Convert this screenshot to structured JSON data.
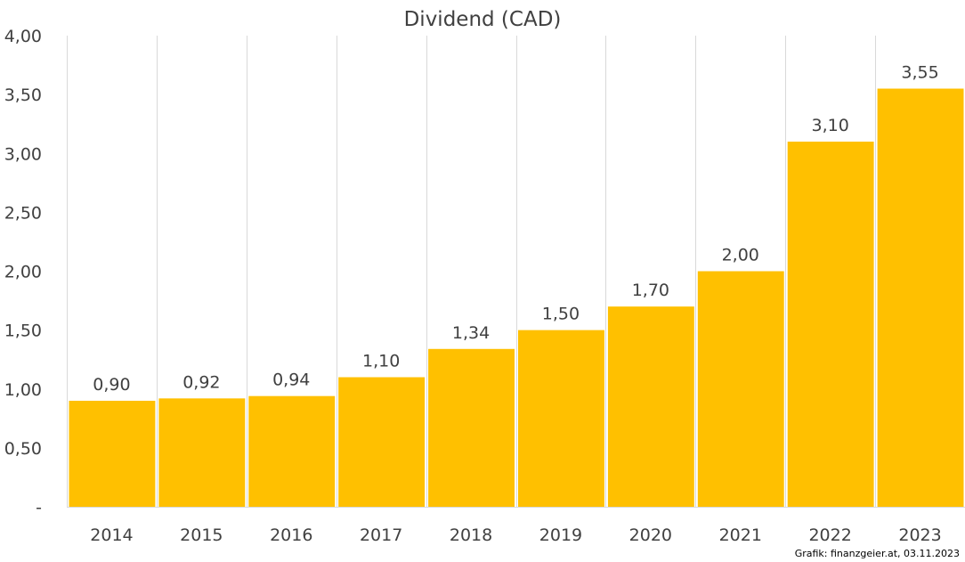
{
  "chart_data": {
    "type": "bar",
    "title": "Dividend (CAD)",
    "categories": [
      "2014",
      "2015",
      "2016",
      "2017",
      "2018",
      "2019",
      "2020",
      "2021",
      "2022",
      "2023"
    ],
    "values": [
      0.9,
      0.92,
      0.94,
      1.1,
      1.34,
      1.5,
      1.7,
      2.0,
      3.1,
      3.55
    ],
    "value_labels": [
      "0,90",
      "0,92",
      "0,94",
      "1,10",
      "1,34",
      "1,50",
      "1,70",
      "2,00",
      "3,10",
      "3,55"
    ],
    "y_ticks": [
      0,
      0.5,
      1,
      1.5,
      2,
      2.5,
      3,
      3.5,
      4
    ],
    "y_tick_labels": [
      "-",
      "0,50",
      "1,00",
      "1,50",
      "2,00",
      "2,50",
      "3,00",
      "3,50",
      "4,00"
    ],
    "ylim": [
      0,
      4
    ],
    "xlabel": "",
    "ylabel": "",
    "grid": "vertical category dividers only",
    "legend": "none",
    "colors": {
      "bar": "#FFC000",
      "grid": "#D9D9D9",
      "text": "#404040"
    }
  },
  "credit": "Grafik: finanzgeier.at, 03.11.2023"
}
